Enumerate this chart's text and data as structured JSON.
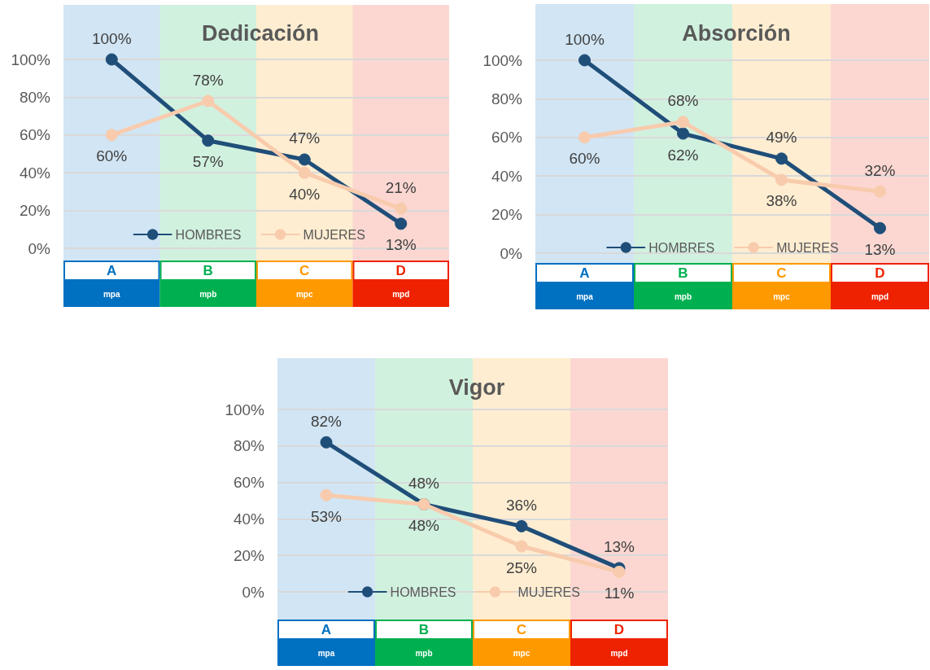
{
  "chart_data": [
    {
      "type": "line",
      "title": "Dedicación",
      "categories": [
        "A",
        "B",
        "C",
        "D"
      ],
      "series": [
        {
          "name": "HOMBRES",
          "color": "#1f4e79",
          "values": [
            100,
            57,
            47,
            13
          ],
          "value_labels": [
            "100%",
            "57%",
            "47%",
            "13%"
          ]
        },
        {
          "name": "MUJERES",
          "color": "#f8cbad",
          "values": [
            60,
            78,
            40,
            21
          ],
          "value_labels": [
            "60%",
            "78%",
            "40%",
            "21%"
          ]
        }
      ],
      "ylim": [
        0,
        100
      ],
      "yticks": [
        {
          "value": 0,
          "label": "0%"
        },
        {
          "value": 20,
          "label": "20%"
        },
        {
          "value": 40,
          "label": "40%"
        },
        {
          "value": 60,
          "label": "60%"
        },
        {
          "value": 80,
          "label": "80%"
        },
        {
          "value": 100,
          "label": "100%"
        }
      ],
      "grid": "y",
      "legend": "bottom",
      "marker": "circle",
      "line_style": "solid",
      "bands": [
        {
          "axis": "x",
          "from": "A",
          "to": "A",
          "label": "mpa",
          "color": "#0070c0"
        },
        {
          "axis": "x",
          "from": "B",
          "to": "B",
          "label": "mpb",
          "color": "#00b050"
        },
        {
          "axis": "x",
          "from": "C",
          "to": "C",
          "label": "mpc",
          "color": "#ff9900"
        },
        {
          "axis": "x",
          "from": "D",
          "to": "D",
          "label": "mpd",
          "color": "#ee2200"
        }
      ]
    },
    {
      "type": "line",
      "title": "Absorción",
      "categories": [
        "A",
        "B",
        "C",
        "D"
      ],
      "series": [
        {
          "name": "HOMBRES",
          "color": "#1f4e79",
          "values": [
            100,
            62,
            49,
            13
          ],
          "value_labels": [
            "100%",
            "62%",
            "49%",
            "13%"
          ]
        },
        {
          "name": "MUJERES",
          "color": "#f8cbad",
          "values": [
            60,
            68,
            38,
            32
          ],
          "value_labels": [
            "60%",
            "68%",
            "38%",
            "32%"
          ]
        }
      ],
      "ylim": [
        0,
        100
      ],
      "yticks": [
        {
          "value": 0,
          "label": "0%"
        },
        {
          "value": 20,
          "label": "20%"
        },
        {
          "value": 40,
          "label": "40%"
        },
        {
          "value": 60,
          "label": "60%"
        },
        {
          "value": 80,
          "label": "80%"
        },
        {
          "value": 100,
          "label": "100%"
        }
      ],
      "grid": "y",
      "legend": "bottom",
      "marker": "circle",
      "line_style": "solid",
      "bands": [
        {
          "axis": "x",
          "from": "A",
          "to": "A",
          "label": "mpa",
          "color": "#0070c0"
        },
        {
          "axis": "x",
          "from": "B",
          "to": "B",
          "label": "mpb",
          "color": "#00b050"
        },
        {
          "axis": "x",
          "from": "C",
          "to": "C",
          "label": "mpc",
          "color": "#ff9900"
        },
        {
          "axis": "x",
          "from": "D",
          "to": "D",
          "label": "mpd",
          "color": "#ee2200"
        }
      ]
    },
    {
      "type": "line",
      "title": "Vigor",
      "categories": [
        "A",
        "B",
        "C",
        "D"
      ],
      "series": [
        {
          "name": "HOMBRES",
          "color": "#1f4e79",
          "values": [
            82,
            48,
            36,
            13
          ],
          "value_labels": [
            "82%",
            "48%",
            "36%",
            "13%"
          ]
        },
        {
          "name": "MUJERES",
          "color": "#f8cbad",
          "values": [
            53,
            48,
            25,
            11
          ],
          "value_labels": [
            "53%",
            "48%",
            "25%",
            "11%"
          ]
        }
      ],
      "ylim": [
        0,
        100
      ],
      "yticks": [
        {
          "value": 0,
          "label": "0%"
        },
        {
          "value": 20,
          "label": "20%"
        },
        {
          "value": 40,
          "label": "40%"
        },
        {
          "value": 60,
          "label": "60%"
        },
        {
          "value": 80,
          "label": "80%"
        },
        {
          "value": 100,
          "label": "100%"
        }
      ],
      "grid": "y",
      "legend": "bottom",
      "marker": "circle",
      "line_style": "solid",
      "bands": [
        {
          "axis": "x",
          "from": "A",
          "to": "A",
          "label": "mpa",
          "color": "#0070c0"
        },
        {
          "axis": "x",
          "from": "B",
          "to": "B",
          "label": "mpb",
          "color": "#00b050"
        },
        {
          "axis": "x",
          "from": "C",
          "to": "C",
          "label": "mpc",
          "color": "#ff9900"
        },
        {
          "axis": "x",
          "from": "D",
          "to": "D",
          "label": "mpd",
          "color": "#ee2200"
        }
      ]
    }
  ]
}
